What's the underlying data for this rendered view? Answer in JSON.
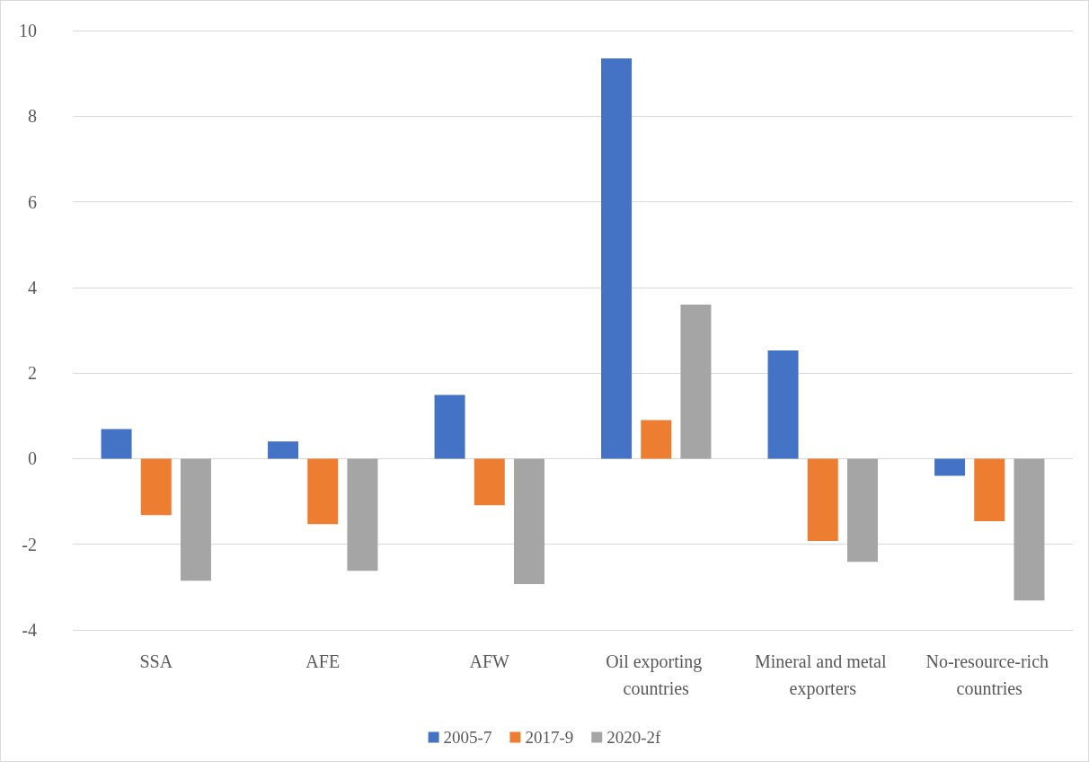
{
  "chart_data": {
    "type": "bar",
    "categories": [
      "SSA",
      "AFE",
      "AFW",
      "Oil exporting countries",
      "Mineral and metal exporters",
      "No-resource-rich countries"
    ],
    "series": [
      {
        "name": "2005-7",
        "color": "#4472c4",
        "values": [
          0.69,
          0.4,
          1.49,
          9.35,
          2.53,
          -0.4
        ]
      },
      {
        "name": "2017-9",
        "color": "#ed7d31",
        "values": [
          -1.32,
          -1.53,
          -1.09,
          0.9,
          -1.92,
          -1.46
        ]
      },
      {
        "name": "2020-2f",
        "color": "#a5a5a5",
        "values": [
          -2.85,
          -2.62,
          -2.93,
          3.6,
          -2.41,
          -3.31
        ]
      }
    ],
    "ylim": [
      -4,
      10
    ],
    "yticks": [
      -4,
      -2,
      0,
      2,
      4,
      6,
      8,
      10
    ],
    "grid": "y",
    "legend": "bottom"
  }
}
